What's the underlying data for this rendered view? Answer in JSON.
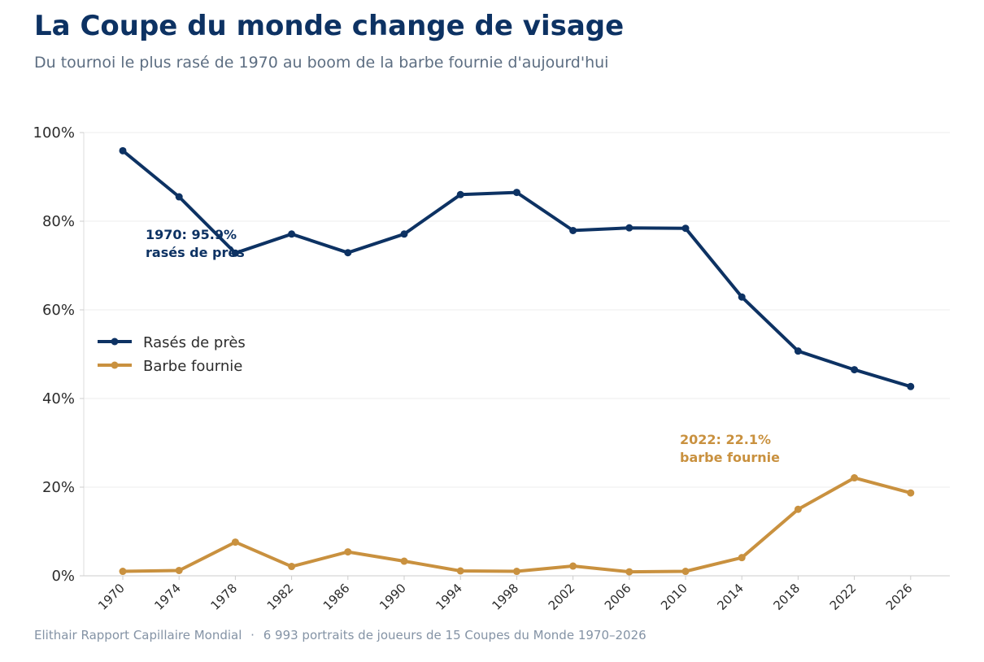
{
  "header": {
    "title": "La Coupe du monde change de visage",
    "subtitle": "Du tournoi le plus rasé de 1970 au boom de la barbe fournie d'aujourd'hui"
  },
  "footer": {
    "source": "Elithair Rapport Capillaire Mondial",
    "separator": "·",
    "note": "6 993 portraits de joueurs de 15 Coupes du Monde 1970–2026"
  },
  "chart_data": {
    "type": "line",
    "x": [
      "1970",
      "1974",
      "1978",
      "1982",
      "1986",
      "1990",
      "1994",
      "1998",
      "2002",
      "2006",
      "2010",
      "2014",
      "2018",
      "2022",
      "2026"
    ],
    "ylim": [
      0,
      100
    ],
    "yticks": [
      0,
      20,
      40,
      60,
      80,
      100
    ],
    "ytick_labels": [
      "0%",
      "20%",
      "40%",
      "60%",
      "80%",
      "100%"
    ],
    "grid": true,
    "legend_position": "left",
    "series": [
      {
        "name": "Rasés de près",
        "color": "#0d3263",
        "values": [
          95.9,
          85.5,
          72.8,
          77.1,
          72.9,
          77.1,
          86.0,
          86.5,
          77.9,
          78.5,
          78.4,
          62.9,
          50.7,
          46.5,
          42.7
        ]
      },
      {
        "name": "Barbe fournie",
        "color": "#c9913f",
        "values": [
          1.0,
          1.2,
          7.6,
          2.1,
          5.4,
          3.3,
          1.1,
          1.0,
          2.2,
          0.9,
          1.0,
          4.1,
          15.0,
          22.1,
          18.7
        ]
      }
    ],
    "annotations": [
      {
        "series": 0,
        "lines": [
          "1970: 95.9%",
          "rasés de près"
        ],
        "color": "#0d3263"
      },
      {
        "series": 1,
        "lines": [
          "2022: 22.1%",
          "barbe fournie"
        ],
        "color": "#c9913f"
      }
    ]
  }
}
